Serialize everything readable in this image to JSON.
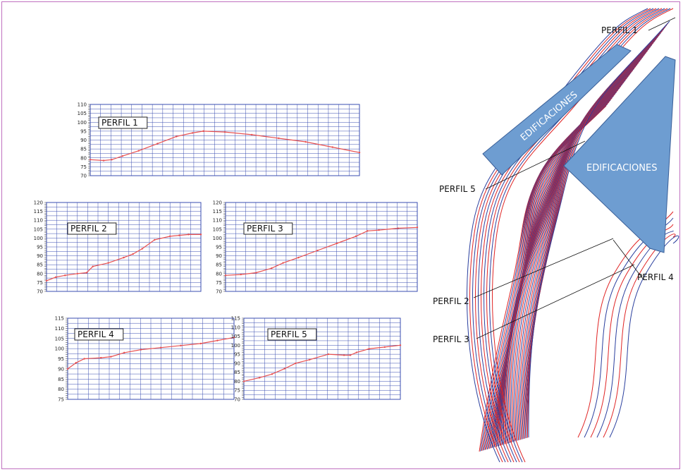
{
  "chart_data": [
    {
      "type": "line",
      "title": "PERFIL 1",
      "ylim": [
        70,
        110
      ],
      "yticks": [
        70,
        75,
        80,
        85,
        90,
        95,
        100,
        105,
        110
      ],
      "x": [
        0,
        0.05,
        0.08,
        0.12,
        0.18,
        0.25,
        0.32,
        0.38,
        0.42,
        0.5,
        0.6,
        0.7,
        0.8,
        0.9,
        1.0
      ],
      "values": [
        79,
        78.5,
        79,
        81,
        84,
        88,
        92,
        94,
        95,
        94.5,
        93,
        91,
        89,
        86,
        83
      ]
    },
    {
      "type": "line",
      "title": "PERFIL 2",
      "ylim": [
        70,
        120
      ],
      "yticks": [
        70,
        75,
        80,
        85,
        90,
        95,
        100,
        105,
        110,
        115,
        120
      ],
      "x": [
        0,
        0.06,
        0.12,
        0.2,
        0.26,
        0.3,
        0.4,
        0.5,
        0.56,
        0.62,
        0.7,
        0.8,
        0.86,
        0.92,
        1.0
      ],
      "values": [
        76,
        78,
        79,
        80,
        80.5,
        84,
        86,
        89,
        91,
        94,
        99,
        101,
        101.5,
        102,
        102
      ]
    },
    {
      "type": "line",
      "title": "PERFIL 3",
      "ylim": [
        70,
        120
      ],
      "yticks": [
        70,
        75,
        80,
        85,
        90,
        95,
        100,
        105,
        110,
        115,
        120
      ],
      "x": [
        0,
        0.08,
        0.16,
        0.24,
        0.3,
        0.38,
        0.48,
        0.58,
        0.68,
        0.74,
        0.8,
        0.9,
        1.0
      ],
      "values": [
        79,
        79.5,
        80.5,
        83,
        86,
        89,
        93,
        97,
        101,
        104,
        104.5,
        105.5,
        106
      ]
    },
    {
      "type": "line",
      "title": "PERFIL 4",
      "ylim": [
        75,
        115
      ],
      "yticks": [
        75,
        80,
        85,
        90,
        95,
        100,
        105,
        110,
        115
      ],
      "x": [
        0,
        0.05,
        0.1,
        0.2,
        0.26,
        0.34,
        0.44,
        0.56,
        0.68,
        0.8,
        0.9,
        1.0
      ],
      "values": [
        90,
        93,
        95,
        95.5,
        96,
        98,
        99.5,
        100.5,
        101.5,
        102.5,
        104,
        105.5
      ]
    },
    {
      "type": "line",
      "title": "PERFIL 5",
      "ylim": [
        70,
        115
      ],
      "yticks": [
        70,
        75,
        80,
        85,
        90,
        95,
        100,
        105,
        110,
        115
      ],
      "x": [
        0,
        0.1,
        0.18,
        0.26,
        0.33,
        0.42,
        0.54,
        0.64,
        0.68,
        0.72,
        0.8,
        0.9,
        1.0
      ],
      "values": [
        80,
        82,
        84,
        87,
        90,
        92,
        95,
        94.5,
        94.5,
        96,
        98,
        99,
        100
      ]
    }
  ],
  "map": {
    "labels": {
      "perfil1": "PERFIL 1",
      "perfil2": "PERFIL 2",
      "perfil3": "PERFIL 3",
      "perfil4": "PERFIL 4",
      "perfil5": "PERFIL 5",
      "edif1": "EDIFICACIONES",
      "edif2": "EDIFICACIONES"
    },
    "colors": {
      "building": "#6e9dd1",
      "contour_red": "#e02424",
      "contour_blue": "#2a3f9e",
      "profile_line": "#e85050",
      "grid": "#3a4db0"
    }
  }
}
